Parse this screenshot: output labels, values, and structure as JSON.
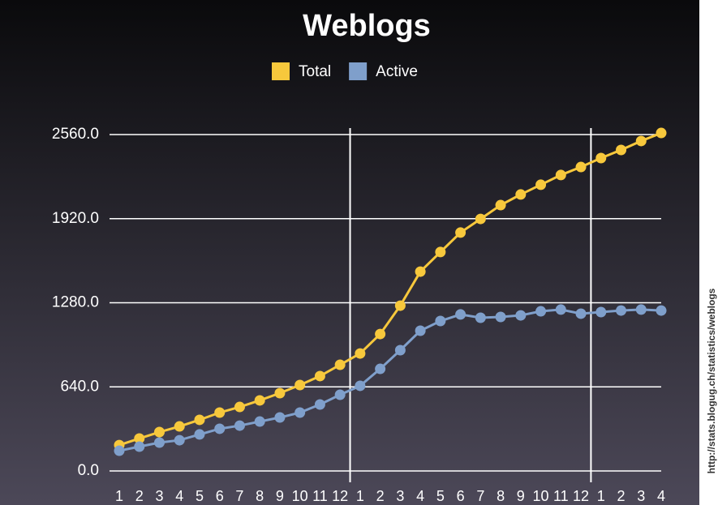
{
  "chart_data": {
    "type": "line",
    "title": "Weblogs",
    "categories": [
      "1",
      "2",
      "3",
      "4",
      "5",
      "6",
      "7",
      "8",
      "9",
      "10",
      "11",
      "12",
      "1",
      "2",
      "3",
      "4",
      "5",
      "6",
      "7",
      "8",
      "9",
      "10",
      "11",
      "12",
      "1",
      "2",
      "3",
      "4"
    ],
    "series": [
      {
        "name": "Total",
        "color": "#f7c83c",
        "values": [
          197,
          247,
          296,
          339,
          389,
          444,
          487,
          537,
          592,
          654,
          722,
          808,
          894,
          1042,
          1258,
          1517,
          1666,
          1814,
          1918,
          2023,
          2104,
          2178,
          2252,
          2313,
          2381,
          2443,
          2511,
          2572
        ]
      },
      {
        "name": "Active",
        "color": "#7f9fcb",
        "values": [
          154,
          185,
          216,
          234,
          278,
          321,
          345,
          376,
          407,
          444,
          506,
          580,
          648,
          777,
          919,
          1067,
          1141,
          1191,
          1166,
          1172,
          1184,
          1215,
          1228,
          1197,
          1209,
          1221,
          1228,
          1221
        ]
      }
    ],
    "ylim": [
      0,
      2560
    ],
    "yticks": [
      {
        "value": 0,
        "label": "0.0"
      },
      {
        "value": 640,
        "label": "640.0"
      },
      {
        "value": 1280,
        "label": "1280.0"
      },
      {
        "value": 1920,
        "label": "1920.0"
      },
      {
        "value": 2560,
        "label": "2560.0"
      }
    ],
    "grid": true,
    "source": "http://stats.blogug.ch/statistics/weblogs"
  }
}
